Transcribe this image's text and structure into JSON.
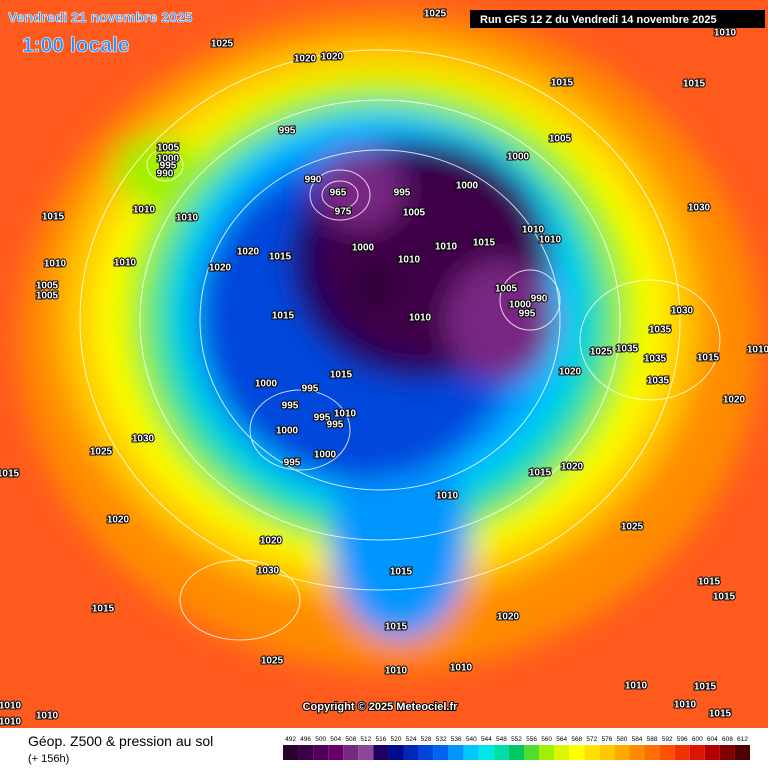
{
  "header": {
    "date": "Vendredi 21 novembre 2025",
    "time": "1:00 locale",
    "run": "Run GFS 12 Z du Vendredi 14 novembre 2025"
  },
  "copyright": "Copyright © 2025 Meteociel.fr",
  "footer": {
    "title": "Géop. Z500 & pression au sol",
    "subtitle": "(+ 156h)"
  },
  "isobar_labels": [
    1025,
    1010,
    1025,
    1020,
    1020,
    1015,
    1015,
    995,
    1005,
    1005,
    1000,
    995,
    990,
    1000,
    990,
    965,
    975,
    995,
    1000,
    1005,
    1030,
    1010,
    1015,
    1010,
    1010,
    1010,
    1015,
    1010,
    1000,
    1020,
    1015,
    1010,
    1010,
    1010,
    1020,
    1005,
    1005,
    1005,
    990,
    1000,
    995,
    1030,
    1015,
    1010,
    1035,
    1025,
    1035,
    1035,
    1015,
    1010,
    1015,
    1020,
    1000,
    995,
    1035,
    995,
    1020,
    995,
    1010,
    995,
    1000,
    1030,
    1000,
    995,
    1025,
    1015,
    1015,
    1020,
    1010,
    1020,
    1025,
    1020,
    1030,
    1015,
    1015,
    1015,
    1020,
    1015,
    1015,
    1025,
    1010,
    1010,
    1010,
    1015,
    1010,
    1015,
    1010,
    1010,
    1010
  ],
  "scale": {
    "values": [
      492,
      496,
      500,
      504,
      508,
      512,
      516,
      520,
      524,
      528,
      532,
      536,
      540,
      544,
      548,
      552,
      556,
      560,
      564,
      568,
      572,
      576,
      580,
      584,
      588,
      592,
      596,
      600,
      604,
      608,
      612
    ],
    "colors": [
      "#2a0030",
      "#3c0046",
      "#50005a",
      "#64006e",
      "#782882",
      "#8c4696",
      "#1e0064",
      "#000a8c",
      "#0028b4",
      "#0046dc",
      "#0064f0",
      "#0096ff",
      "#00c8ff",
      "#00e6e6",
      "#00dcaa",
      "#00c864",
      "#50dc32",
      "#a0f000",
      "#dcf500",
      "#ffff00",
      "#ffe100",
      "#ffc800",
      "#ffaa00",
      "#ff8c00",
      "#ff6e00",
      "#ff5000",
      "#f03200",
      "#dc1400",
      "#b40000",
      "#820000",
      "#500000"
    ]
  }
}
